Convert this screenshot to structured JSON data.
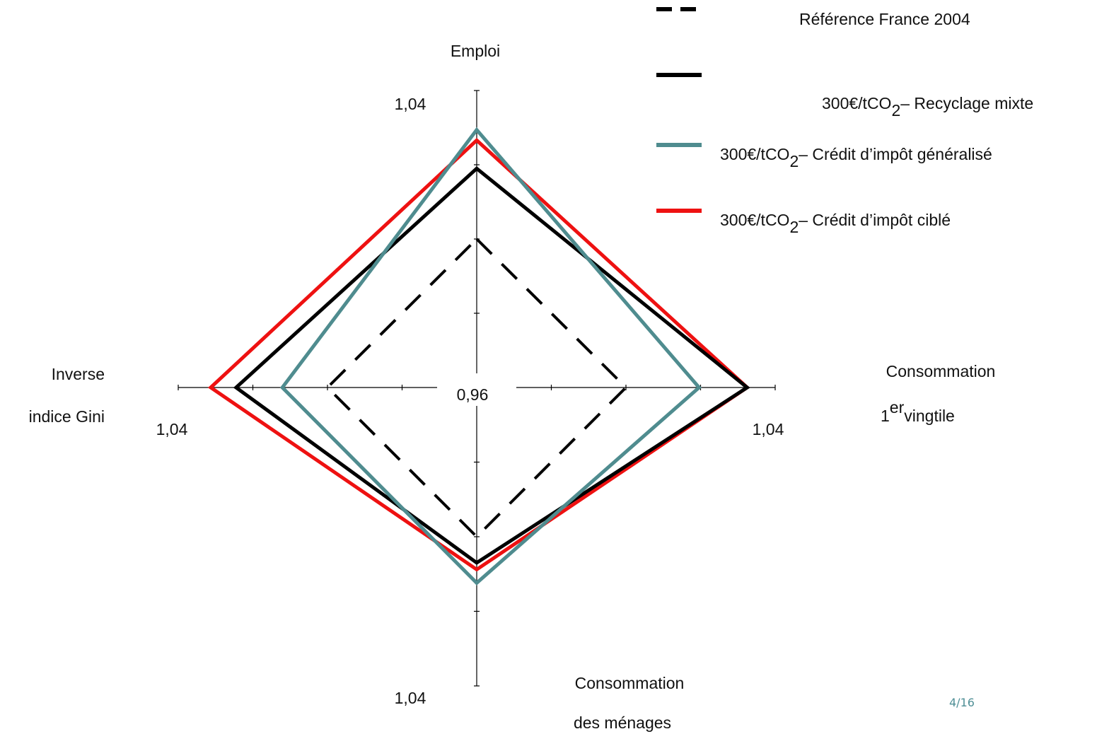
{
  "page_number": "4/16",
  "colors": {
    "reference": "#000000",
    "mixte": "#000000",
    "generalise": "#4f8c8f",
    "cible": "#ee1111"
  },
  "chart_data": {
    "type": "radar",
    "center_label": "0,96",
    "range": [
      0.96,
      1.04
    ],
    "axes": [
      {
        "id": "emploi",
        "lines": [
          "Emploi"
        ],
        "tick": "1,04"
      },
      {
        "id": "consommation-vingtile",
        "lines": [
          "Consommation",
          "1",
          "er",
          "vingtile"
        ],
        "tick": "1,04"
      },
      {
        "id": "consommation-menages",
        "lines": [
          "Consommation",
          "des ménages"
        ],
        "tick": "1,04"
      },
      {
        "id": "gini",
        "lines": [
          "Inverse",
          "indice Gini"
        ],
        "tick": "1,04"
      }
    ],
    "series": [
      {
        "name": "Référence France 2004",
        "style": "dashed",
        "color": "#000000",
        "values": [
          1.0,
          1.0,
          1.0,
          1.0
        ]
      },
      {
        "name_parts": [
          "300€/tCO",
          "2",
          "– Recyclage mixte"
        ],
        "style": "solid",
        "color": "#000000",
        "values": [
          1.019,
          1.0325,
          1.007,
          1.0245
        ]
      },
      {
        "name_parts": [
          "300€/tCO",
          "2",
          "– Crédit d’impôt généralisé"
        ],
        "style": "solid",
        "color": "#4f8c8f",
        "values": [
          1.0294,
          1.0196,
          1.0124,
          1.0121
        ]
      },
      {
        "name_parts": [
          "300€/tCO",
          "2",
          "– Crédit d’impôt ciblé"
        ],
        "style": "solid",
        "color": "#ee1111",
        "values": [
          1.0266,
          1.0325,
          1.0088,
          1.0313
        ]
      }
    ]
  }
}
